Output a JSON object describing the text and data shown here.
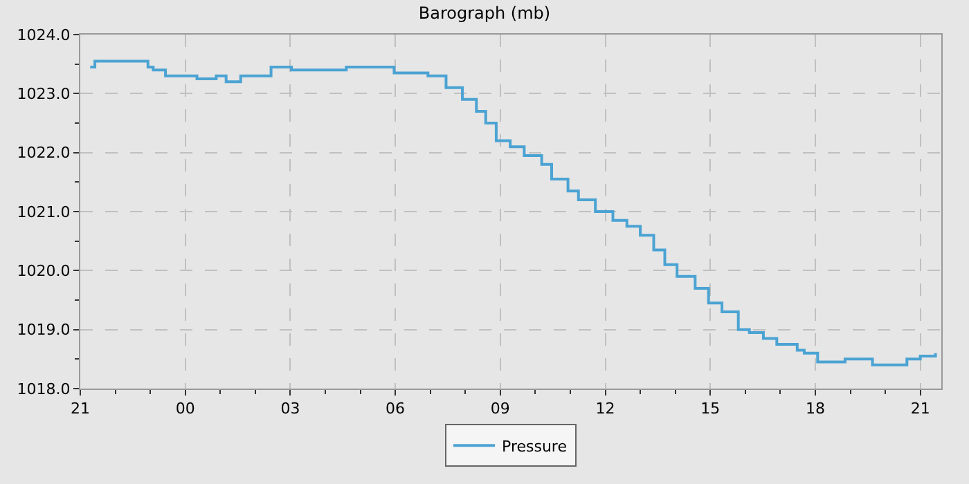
{
  "chart_data": {
    "type": "step",
    "title": "Barograph (mb)",
    "x": [
      "2000-01-01T21:17",
      "2000-01-01T21:25",
      "2000-01-01T22:53",
      "2000-01-01T22:56",
      "2000-01-01T23:05",
      "2000-01-01T23:19",
      "2000-01-01T23:26",
      "2000-01-01T23:55",
      "2000-01-02T00:20",
      "2000-01-02T00:53",
      "2000-01-02T01:10",
      "2000-01-02T01:28",
      "2000-01-02T01:35",
      "2000-01-02T02:15",
      "2000-01-02T02:27",
      "2000-01-02T02:50",
      "2000-01-02T03:02",
      "2000-01-02T04:13",
      "2000-01-02T04:36",
      "2000-01-02T05:46",
      "2000-01-02T05:58",
      "2000-01-02T06:45",
      "2000-01-02T06:56",
      "2000-01-02T07:27",
      "2000-01-02T07:55",
      "2000-01-02T08:19",
      "2000-01-02T08:35",
      "2000-01-02T08:53",
      "2000-01-02T09:17",
      "2000-01-02T09:41",
      "2000-01-02T10:11",
      "2000-01-02T10:28",
      "2000-01-02T10:56",
      "2000-01-02T11:14",
      "2000-01-02T11:43",
      "2000-01-02T12:13",
      "2000-01-02T12:37",
      "2000-01-02T13:00",
      "2000-01-02T13:23",
      "2000-01-02T13:42",
      "2000-01-02T14:03",
      "2000-01-02T14:34",
      "2000-01-02T14:57",
      "2000-01-02T15:20",
      "2000-01-02T15:48",
      "2000-01-02T16:07",
      "2000-01-02T16:31",
      "2000-01-02T16:54",
      "2000-01-02T17:29",
      "2000-01-02T17:41",
      "2000-01-02T18:04",
      "2000-01-02T18:28",
      "2000-01-02T18:51",
      "2000-01-02T19:38",
      "2000-01-02T20:13",
      "2000-01-02T20:37",
      "2000-01-02T21:00",
      "2000-01-02T21:26"
    ],
    "series": [
      {
        "name": "Pressure",
        "color": "#4ba3d3",
        "values": [
          1023.45,
          1023.55,
          1023.55,
          1023.45,
          1023.4,
          1023.4,
          1023.3,
          1023.3,
          1023.25,
          1023.3,
          1023.2,
          1023.2,
          1023.3,
          1023.3,
          1023.45,
          1023.45,
          1023.4,
          1023.4,
          1023.45,
          1023.45,
          1023.35,
          1023.35,
          1023.3,
          1023.1,
          1022.9,
          1022.7,
          1022.5,
          1022.2,
          1022.1,
          1021.95,
          1021.8,
          1021.55,
          1021.35,
          1021.2,
          1021.0,
          1020.85,
          1020.75,
          1020.6,
          1020.35,
          1020.1,
          1019.9,
          1019.7,
          1019.45,
          1019.3,
          1019.0,
          1018.95,
          1018.85,
          1018.75,
          1018.65,
          1018.6,
          1018.45,
          1018.45,
          1018.5,
          1018.4,
          1018.4,
          1018.5,
          1018.55,
          1018.6
        ]
      }
    ],
    "xlim": [
      "2000-01-01T21:00",
      "2000-01-02T21:36"
    ],
    "xticks": [
      {
        "value": "2000-01-01T21:00",
        "label": "21"
      },
      {
        "value": "2000-01-02T00:00",
        "label": "00"
      },
      {
        "value": "2000-01-02T03:00",
        "label": "03"
      },
      {
        "value": "2000-01-02T06:00",
        "label": "06"
      },
      {
        "value": "2000-01-02T09:00",
        "label": "09"
      },
      {
        "value": "2000-01-02T12:00",
        "label": "12"
      },
      {
        "value": "2000-01-02T15:00",
        "label": "15"
      },
      {
        "value": "2000-01-02T18:00",
        "label": "18"
      },
      {
        "value": "2000-01-02T21:00",
        "label": "21"
      }
    ],
    "ylim": [
      1018,
      1024
    ],
    "yticks": [
      {
        "value": 1018,
        "label": "1018.0"
      },
      {
        "value": 1019,
        "label": "1019.0"
      },
      {
        "value": 1020,
        "label": "1020.0"
      },
      {
        "value": 1021,
        "label": "1021.0"
      },
      {
        "value": 1022,
        "label": "1022.0"
      },
      {
        "value": 1023,
        "label": "1023.0"
      },
      {
        "value": 1024,
        "label": "1024.0"
      }
    ],
    "grid": true,
    "legend": "bottom",
    "marker": "none",
    "line_style": "solid"
  }
}
